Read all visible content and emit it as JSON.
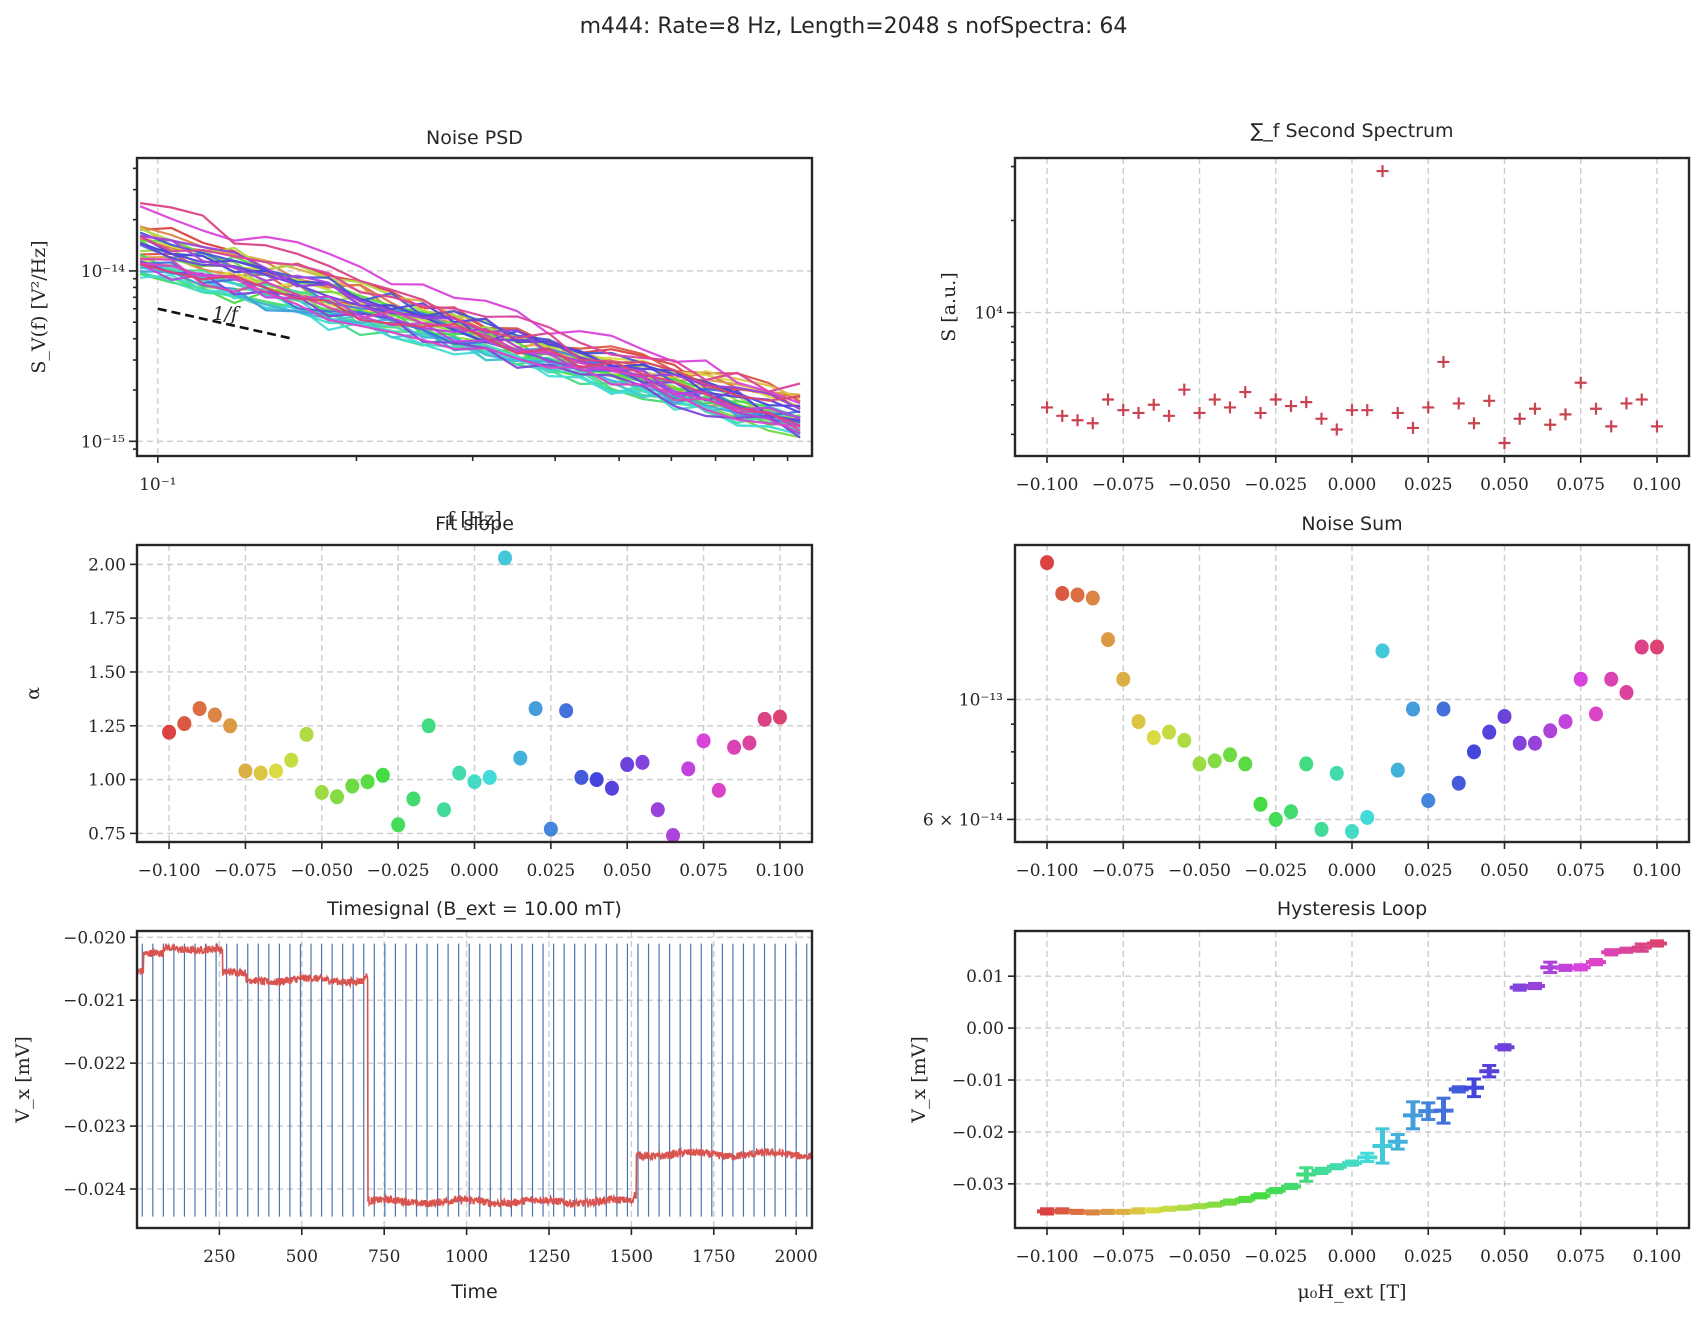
{
  "figure": {
    "suptitle": "m444: Rate=8 Hz, Length=2048 s nofSpectra: 64"
  },
  "chart_data": [
    {
      "id": "noise_psd",
      "type": "line",
      "title": "Noise PSD",
      "xlabel": "f [Hz]",
      "ylabel": "S_V(f) [V²/Hz]",
      "xscale": "log",
      "yscale": "log",
      "xlim": [
        0.093,
        0.98
      ],
      "ylim": [
        8.2e-16,
        4.6e-14
      ],
      "xticks": [
        {
          "v": 0.1,
          "label": "10⁻¹"
        }
      ],
      "yticks": [
        {
          "v": 1e-14,
          "label": "10⁻¹⁴"
        },
        {
          "v": 1e-15,
          "label": "10⁻¹⁵"
        }
      ],
      "grid": true,
      "n_series": 41,
      "f_range_hz": [
        0.094,
        0.94
      ],
      "start_values_range": [
        6.8e-15,
        3.7e-14
      ],
      "end_values_range": [
        9.5e-16,
        2.4e-15
      ],
      "annotation": {
        "text": "1/f",
        "x": [
          0.1,
          0.16
        ],
        "y": [
          6e-15,
          4e-15
        ],
        "style": "dashed black reference line"
      },
      "series_color_map": "hsv rainbow (red→orange→yellow→green→cyan→blue→purple→magenta→red), ordered by field"
    },
    {
      "id": "second_spectrum",
      "type": "scatter",
      "title": "∑_f Second Spectrum",
      "xlabel": "",
      "ylabel": "S [a.u.]",
      "yscale": "log",
      "xlim": [
        -0.1105,
        0.1105
      ],
      "ylim": [
        3400,
        32000
      ],
      "xticks": [
        "−0.100",
        "−0.075",
        "−0.050",
        "−0.025",
        "0.000",
        "0.025",
        "0.050",
        "0.075",
        "0.100"
      ],
      "yticks": [
        {
          "v": 10000,
          "label": "10⁴"
        }
      ],
      "grid": true,
      "marker": "+",
      "color": "#c9424f",
      "x": [
        -0.1,
        -0.095,
        -0.09,
        -0.085,
        -0.08,
        -0.075,
        -0.07,
        -0.065,
        -0.06,
        -0.055,
        -0.05,
        -0.045,
        -0.04,
        -0.035,
        -0.03,
        -0.025,
        -0.02,
        -0.015,
        -0.01,
        -0.005,
        0.0,
        0.005,
        0.015,
        0.02,
        0.025,
        0.03,
        0.035,
        0.04,
        0.045,
        0.05,
        0.055,
        0.06,
        0.065,
        0.07,
        0.075,
        0.08,
        0.085,
        0.09,
        0.095,
        0.1
      ],
      "y": [
        4900,
        4600,
        4450,
        4350,
        5200,
        4800,
        4700,
        5000,
        4600,
        5600,
        4700,
        5200,
        4900,
        5500,
        4700,
        5200,
        4950,
        5100,
        4500,
        4150,
        4800,
        4800,
        4700,
        4200,
        4900,
        6900,
        5050,
        4350,
        5150,
        3750,
        4500,
        4850,
        4300,
        4650,
        5900,
        4850,
        4250,
        5050,
        5200,
        4250
      ],
      "outlier": {
        "x": 0.01,
        "y": 29000
      }
    },
    {
      "id": "fit_slope",
      "type": "scatter",
      "title": "Fit slope",
      "xlabel": "",
      "ylabel": "α",
      "xlim": [
        -0.1105,
        0.1105
      ],
      "ylim": [
        0.71,
        2.09
      ],
      "xticks": [
        "−0.100",
        "−0.075",
        "−0.050",
        "−0.025",
        "0.000",
        "0.025",
        "0.050",
        "0.075",
        "0.100"
      ],
      "yticks": [
        "0.75",
        "1.00",
        "1.25",
        "1.50",
        "1.75",
        "2.00"
      ],
      "grid": true,
      "x": [
        -0.1,
        -0.095,
        -0.09,
        -0.085,
        -0.08,
        -0.075,
        -0.07,
        -0.065,
        -0.06,
        -0.055,
        -0.05,
        -0.045,
        -0.04,
        -0.035,
        -0.03,
        -0.025,
        -0.02,
        -0.015,
        -0.01,
        -0.005,
        0.0,
        0.005,
        0.01,
        0.015,
        0.02,
        0.025,
        0.03,
        0.035,
        0.04,
        0.045,
        0.05,
        0.055,
        0.06,
        0.065,
        0.07,
        0.075,
        0.08,
        0.085,
        0.09,
        0.095,
        0.1
      ],
      "y": [
        1.22,
        1.26,
        1.33,
        1.3,
        1.25,
        1.04,
        1.03,
        1.04,
        1.09,
        1.21,
        0.94,
        0.92,
        0.97,
        0.99,
        1.02,
        0.79,
        0.91,
        1.25,
        0.86,
        1.03,
        0.99,
        1.01,
        2.03,
        1.1,
        1.33,
        0.77,
        1.32,
        1.01,
        1.0,
        0.96,
        1.07,
        1.08,
        0.86,
        0.74,
        1.05,
        1.18,
        0.95,
        1.15,
        1.17,
        1.28,
        1.29
      ]
    },
    {
      "id": "noise_sum",
      "type": "scatter",
      "title": "Noise Sum",
      "xlabel": "",
      "ylabel": "",
      "yscale": "log",
      "xlim": [
        -0.1105,
        0.1105
      ],
      "ylim": [
        5.45e-14,
        1.93e-13
      ],
      "xticks": [
        "−0.100",
        "−0.075",
        "−0.050",
        "−0.025",
        "0.000",
        "0.025",
        "0.050",
        "0.075",
        "0.100"
      ],
      "yticks": [
        {
          "v": 1e-13,
          "label": "10⁻¹³"
        },
        {
          "v": 6e-14,
          "label": "6 × 10⁻¹⁴"
        }
      ],
      "grid": true,
      "x": [
        -0.1,
        -0.095,
        -0.09,
        -0.085,
        -0.08,
        -0.075,
        -0.07,
        -0.065,
        -0.06,
        -0.055,
        -0.05,
        -0.045,
        -0.04,
        -0.035,
        -0.03,
        -0.025,
        -0.02,
        -0.015,
        -0.01,
        -0.005,
        0.0,
        0.005,
        0.01,
        0.015,
        0.02,
        0.025,
        0.03,
        0.035,
        0.04,
        0.045,
        0.05,
        0.055,
        0.06,
        0.065,
        0.07,
        0.075,
        0.08,
        0.085,
        0.09,
        0.095,
        0.1
      ],
      "y": [
        1.79e-13,
        1.57e-13,
        1.56e-13,
        1.54e-13,
        1.29e-13,
        1.09e-13,
        9.1e-14,
        8.5e-14,
        8.7e-14,
        8.4e-14,
        7.6e-14,
        7.7e-14,
        7.9e-14,
        7.6e-14,
        6.4e-14,
        6e-14,
        6.2e-14,
        7.6e-14,
        5.75e-14,
        7.3e-14,
        5.7e-14,
        6.05e-14,
        1.23e-13,
        7.4e-14,
        9.6e-14,
        6.5e-14,
        9.6e-14,
        7e-14,
        8e-14,
        8.7e-14,
        9.3e-14,
        8.3e-14,
        8.3e-14,
        8.75e-14,
        9.1e-14,
        1.09e-13,
        9.4e-14,
        1.09e-13,
        1.03e-13,
        1.25e-13,
        1.25e-13
      ]
    },
    {
      "id": "timesignal",
      "type": "line",
      "title": "Timesignal (B_ext = 10.00 mT)",
      "xlabel": "Time",
      "ylabel": "V_x [mV]",
      "xlim": [
        0,
        2048
      ],
      "ylim": [
        -0.02462,
        -0.0199
      ],
      "xticks": [
        "250",
        "500",
        "750",
        "1000",
        "1250",
        "1500",
        "1750",
        "2000"
      ],
      "yticks": [
        "−0.020",
        "−0.021",
        "−0.022",
        "−0.023",
        "−0.024"
      ],
      "grid": true,
      "signal_color": "#d9534f",
      "segments": [
        {
          "t": [
            0,
            20
          ],
          "level": -0.02055
        },
        {
          "t": [
            20,
            80
          ],
          "level": -0.02028
        },
        {
          "t": [
            80,
            250
          ],
          "level": -0.02018
        },
        {
          "t": [
            250,
            260
          ],
          "level": -0.02022
        },
        {
          "t": [
            260,
            330
          ],
          "level": -0.02058
        },
        {
          "t": [
            330,
            690
          ],
          "level": -0.02068
        },
        {
          "t": [
            690,
            700
          ],
          "level": -0.02062
        },
        {
          "t": [
            700,
            1505
          ],
          "level": -0.0242
        },
        {
          "t": [
            1505,
            1515
          ],
          "level": -0.0241
        },
        {
          "t": [
            1515,
            2048
          ],
          "level": -0.02345
        }
      ],
      "noise_amplitude": 6e-05,
      "marker_lines": {
        "color": "#4c72b0",
        "count": 64,
        "spacing_s": 32,
        "start_s": 16,
        "ymin": -0.02444,
        "ymax": -0.0201
      }
    },
    {
      "id": "hysteresis",
      "type": "scatter",
      "title": "Hysteresis Loop",
      "xlabel": "μ₀H_ext [T]",
      "ylabel": "V_x [mV]",
      "xlim": [
        -0.1105,
        0.1105
      ],
      "ylim": [
        -0.0385,
        0.0187
      ],
      "xticks": [
        "−0.100",
        "−0.075",
        "−0.050",
        "−0.025",
        "0.000",
        "0.025",
        "0.050",
        "0.075",
        "0.100"
      ],
      "yticks": [
        "0.01",
        "0.00",
        "−0.01",
        "−0.02",
        "−0.03"
      ],
      "grid": true,
      "marker": "errorbar",
      "x": [
        -0.1,
        -0.095,
        -0.09,
        -0.085,
        -0.08,
        -0.075,
        -0.07,
        -0.065,
        -0.06,
        -0.055,
        -0.05,
        -0.045,
        -0.04,
        -0.035,
        -0.03,
        -0.025,
        -0.02,
        -0.015,
        -0.01,
        -0.005,
        0.0,
        0.005,
        0.01,
        0.015,
        0.02,
        0.025,
        0.03,
        0.035,
        0.04,
        0.045,
        0.05,
        0.055,
        0.06,
        0.065,
        0.07,
        0.075,
        0.08,
        0.085,
        0.09,
        0.095,
        0.1
      ],
      "y": [
        -0.0353,
        -0.0352,
        -0.0354,
        -0.0355,
        -0.0354,
        -0.0354,
        -0.0352,
        -0.0351,
        -0.0348,
        -0.0346,
        -0.0343,
        -0.034,
        -0.0335,
        -0.033,
        -0.0323,
        -0.0313,
        -0.0305,
        -0.0282,
        -0.0275,
        -0.0267,
        -0.026,
        -0.0249,
        -0.0227,
        -0.0219,
        -0.0168,
        -0.016,
        -0.0159,
        -0.0118,
        -0.0115,
        -0.0083,
        -0.0037,
        0.0078,
        0.0081,
        0.0117,
        0.0116,
        0.0117,
        0.0127,
        0.0146,
        0.015,
        0.0155,
        0.0163
      ],
      "yerr": [
        0.0005,
        0.0004,
        0.0003,
        0.0003,
        0.0003,
        0.0003,
        0.0004,
        0.0003,
        0.0003,
        0.0003,
        0.0003,
        0.0003,
        0.0004,
        0.0004,
        0.0004,
        0.0004,
        0.0004,
        0.0013,
        0.0005,
        0.0004,
        0.0004,
        0.0008,
        0.0033,
        0.0014,
        0.0026,
        0.0016,
        0.0024,
        0.0005,
        0.0017,
        0.0011,
        0.0005,
        0.0005,
        0.0005,
        0.001,
        0.0005,
        0.0005,
        0.0005,
        0.0005,
        0.0004,
        0.0007,
        0.0005
      ]
    }
  ]
}
